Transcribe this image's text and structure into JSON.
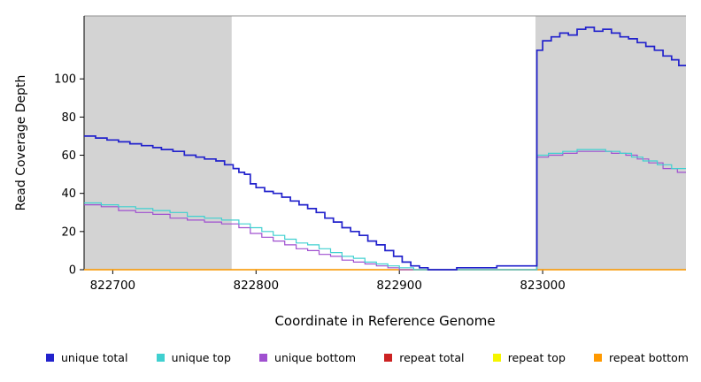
{
  "chart_data": {
    "type": "line",
    "title": "",
    "xlabel": "Coordinate in Reference Genome",
    "ylabel": "Read Coverage Depth",
    "xlim": [
      822680,
      823100
    ],
    "ylim": [
      0,
      133
    ],
    "xticks": [
      822700,
      822800,
      822900,
      823000
    ],
    "yticks": [
      0,
      20,
      40,
      60,
      80,
      100
    ],
    "grid": false,
    "legend_position": "bottom",
    "shade_color": "#d3d3d3",
    "shaded_regions": [
      [
        822680,
        822783
      ],
      [
        822995,
        823100
      ]
    ],
    "series": [
      {
        "name": "unique total",
        "color": "#2222cc",
        "x": [
          822680,
          822688,
          822696,
          822704,
          822712,
          822720,
          822728,
          822734,
          822742,
          822750,
          822758,
          822764,
          822772,
          822778,
          822784,
          822788,
          822792,
          822796,
          822800,
          822806,
          822812,
          822818,
          822824,
          822830,
          822836,
          822842,
          822848,
          822854,
          822860,
          822866,
          822872,
          822878,
          822884,
          822890,
          822896,
          822902,
          822908,
          822914,
          822920,
          822940,
          822955,
          822968,
          822985,
          822996,
          823000,
          823006,
          823012,
          823018,
          823024,
          823030,
          823036,
          823042,
          823048,
          823054,
          823060,
          823066,
          823072,
          823078,
          823084,
          823090,
          823095
        ],
        "y": [
          70,
          69,
          68,
          67,
          66,
          65,
          64,
          63,
          62,
          60,
          59,
          58,
          57,
          55,
          53,
          51,
          50,
          45,
          43,
          41,
          40,
          38,
          36,
          34,
          32,
          30,
          27,
          25,
          22,
          20,
          18,
          15,
          13,
          10,
          7,
          4,
          2,
          1,
          0,
          1,
          1,
          2,
          2,
          115,
          120,
          122,
          124,
          123,
          126,
          127,
          125,
          126,
          124,
          122,
          121,
          119,
          117,
          115,
          112,
          110,
          107
        ]
      },
      {
        "name": "unique top",
        "color": "#40d0d0",
        "x": [
          822680,
          822692,
          822704,
          822716,
          822728,
          822740,
          822752,
          822764,
          822776,
          822788,
          822796,
          822804,
          822812,
          822820,
          822828,
          822836,
          822844,
          822852,
          822860,
          822868,
          822876,
          822884,
          822892,
          822900,
          822910,
          822996,
          823004,
          823014,
          823024,
          823034,
          823044,
          823054,
          823062,
          823070,
          823080,
          823090
        ],
        "y": [
          35,
          34,
          33,
          32,
          31,
          30,
          28,
          27,
          26,
          24,
          22,
          20,
          18,
          16,
          14,
          13,
          11,
          9,
          7,
          6,
          4,
          3,
          2,
          1,
          0,
          60,
          61,
          62,
          63,
          63,
          62,
          61,
          59,
          57,
          55,
          53
        ]
      },
      {
        "name": "unique bottom",
        "color": "#a050d0",
        "x": [
          822680,
          822692,
          822704,
          822716,
          822728,
          822740,
          822752,
          822764,
          822776,
          822788,
          822796,
          822804,
          822812,
          822820,
          822828,
          822836,
          822844,
          822852,
          822860,
          822868,
          822876,
          822884,
          822892,
          822900,
          822996,
          823004,
          823014,
          823024,
          823036,
          823048,
          823058,
          823066,
          823074,
          823084,
          823094
        ],
        "y": [
          34,
          33,
          31,
          30,
          29,
          27,
          26,
          25,
          24,
          22,
          19,
          17,
          15,
          13,
          11,
          10,
          8,
          7,
          5,
          4,
          3,
          2,
          1,
          0,
          59,
          60,
          61,
          62,
          62,
          61,
          60,
          58,
          56,
          53,
          51
        ]
      },
      {
        "name": "repeat total",
        "color": "#cc2222",
        "x": [
          822680,
          823100
        ],
        "y": [
          0,
          0
        ]
      },
      {
        "name": "repeat top",
        "color": "#f5f500",
        "x": [
          822680,
          823100
        ],
        "y": [
          0,
          0
        ]
      },
      {
        "name": "repeat bottom",
        "color": "#ff9900",
        "x": [
          822680,
          823100
        ],
        "y": [
          0,
          0
        ]
      }
    ]
  }
}
